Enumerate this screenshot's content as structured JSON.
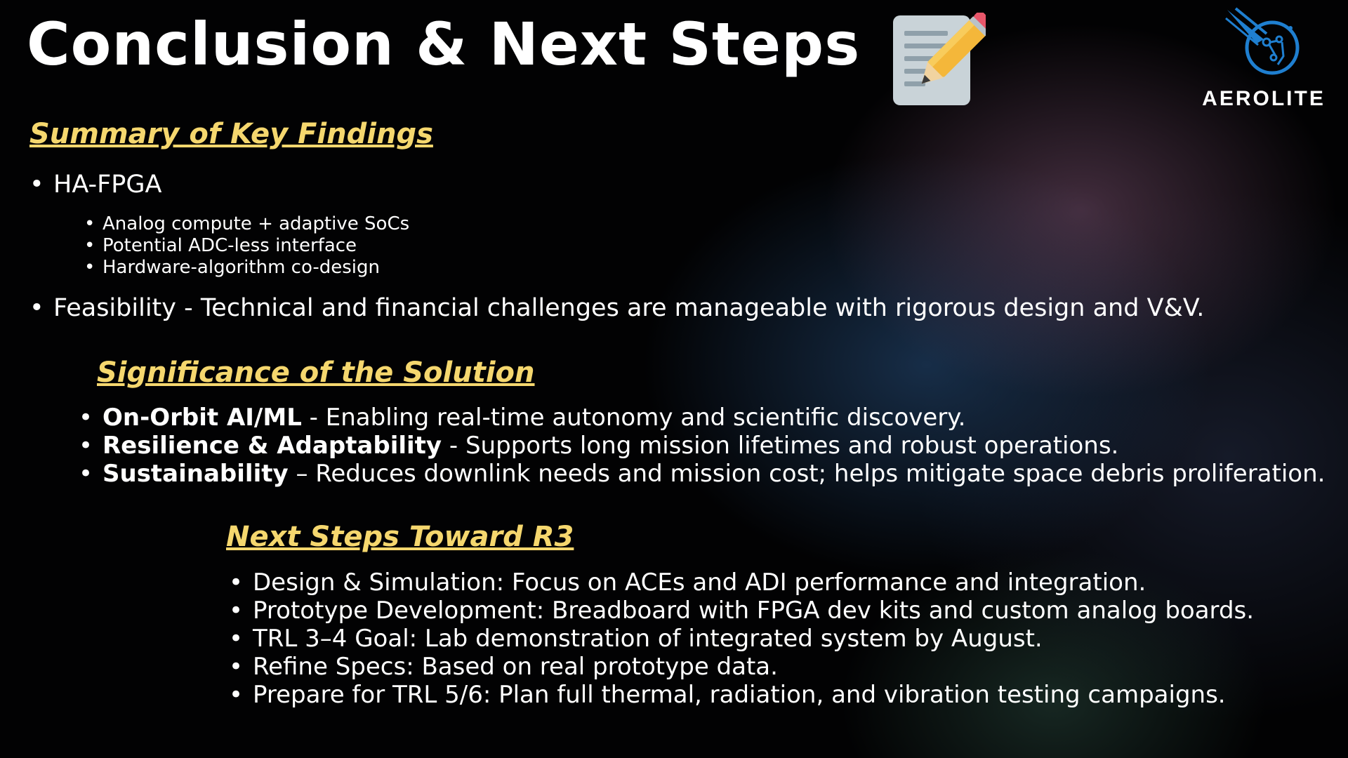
{
  "slide": {
    "title": "Conclusion & Next Steps"
  },
  "logo": {
    "text": "AEROLITE",
    "icon": "comet-circuit-icon"
  },
  "notepad_icon": "notepad-pencil-icon",
  "colors": {
    "heading": "#f5d76e",
    "text": "#ffffff",
    "background": "#020203",
    "logo_blue": "#1f7fd0"
  },
  "summary": {
    "heading": "Summary of Key Findings",
    "item1": "HA-FPGA",
    "subitems": [
      "Analog compute + adaptive SoCs",
      "Potential ADC-less interface",
      "Hardware-algorithm co-design"
    ],
    "item2": "Feasibility - Technical and financial challenges are manageable with rigorous design and V&V."
  },
  "significance": {
    "heading": "Significance of the Solution",
    "items": [
      {
        "bold": "On-Orbit AI/ML",
        "text": " -  Enabling real-time autonomy and scientific discovery."
      },
      {
        "bold": "Resilience & Adaptability",
        "text": " - Supports long mission lifetimes and robust operations."
      },
      {
        "bold": "Sustainability",
        "text": " – Reduces downlink needs and mission cost; helps mitigate space debris proliferation."
      }
    ]
  },
  "next_steps": {
    "heading": "Next Steps Toward R3",
    "items": [
      "Design & Simulation: Focus on ACEs and ADI performance and integration.",
      "Prototype Development: Breadboard with FPGA dev kits and custom analog boards.",
      "TRL 3–4 Goal: Lab demonstration of integrated system by August.",
      "Refine Specs: Based on real prototype data.",
      "Prepare for TRL 5/6: Plan full thermal, radiation, and vibration testing campaigns."
    ]
  }
}
